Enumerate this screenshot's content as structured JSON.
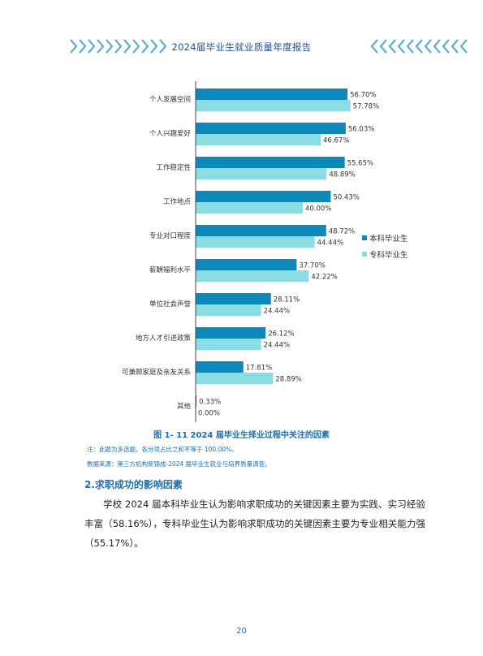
{
  "header": {
    "title": "2024届毕业生就业质量年度报告"
  },
  "chart_data": {
    "type": "bar",
    "orientation": "horizontal",
    "categories": [
      "个人发展空间",
      "个人兴趣爱好",
      "工作稳定性",
      "工作地点",
      "专业对口程度",
      "薪酬福利水平",
      "单位社会声誉",
      "地方人才引进政策",
      "可兼顾家庭及亲友关系",
      "其他"
    ],
    "series": [
      {
        "name": "本科毕业生",
        "values": [
          56.7,
          56.03,
          55.65,
          50.43,
          48.72,
          37.7,
          28.11,
          26.12,
          17.81,
          0.33
        ],
        "labels": [
          "56.70%",
          "56.03%",
          "55.65%",
          "50.43%",
          "48.72%",
          "37.70%",
          "28.11%",
          "26.12%",
          "17.81%",
          "0.33%"
        ],
        "color": "#0e88b8"
      },
      {
        "name": "专科毕业生",
        "values": [
          57.78,
          46.67,
          48.89,
          40.0,
          44.44,
          42.22,
          24.44,
          24.44,
          28.89,
          0.0
        ],
        "labels": [
          "57.78%",
          "46.67%",
          "48.89%",
          "40.00%",
          "44.44%",
          "42.22%",
          "24.44%",
          "24.44%",
          "28.89%",
          "0.00%"
        ],
        "color": "#8cdce4"
      }
    ],
    "xlim": [
      0,
      60
    ],
    "legend": "right"
  },
  "caption": "图 1- 11  2024 届毕业生择业过程中关注的因素",
  "notes": {
    "note1": "注：此题为多选题，各分项占比之和不等于 100.00%。",
    "note2": "数据来源：第三方机构新锦成-2024 届毕业生就业与培养质量调查。"
  },
  "section": {
    "heading": "2.求职成功的影响因素",
    "paragraph": "学校 2024 届本科毕业生认为影响求职成功的关键因素主要为实践、实习经验丰富（58.16%），专科毕业生认为影响求职成功的关键因素主要为专业相关能力强（55.17%）。"
  },
  "footer": {
    "page_number": "20"
  }
}
